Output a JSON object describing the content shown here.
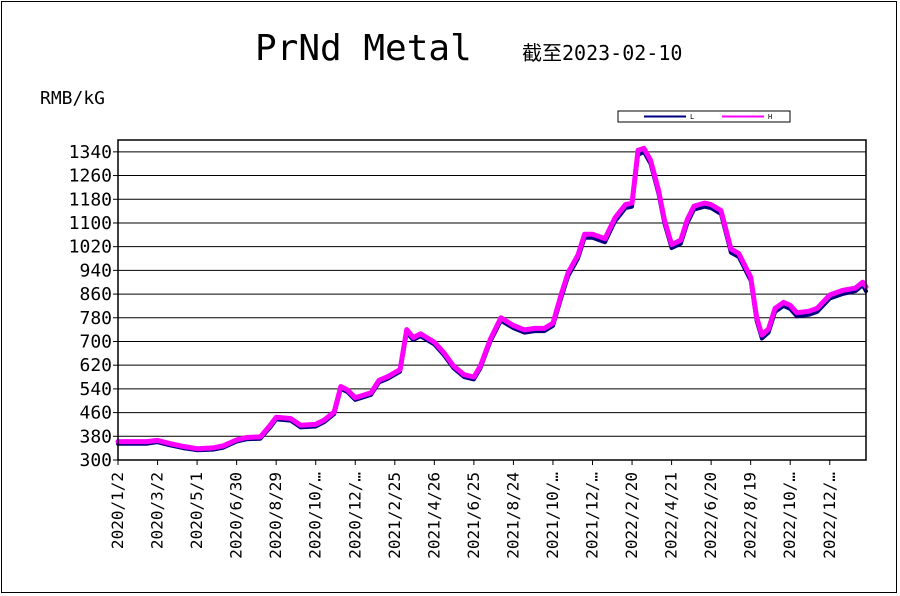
{
  "chart_data": {
    "type": "line",
    "title": "PrNd Metal",
    "subtitle": "截至2023-02-10",
    "ylabel": "RMB/kG",
    "ylim": [
      300,
      1380
    ],
    "yticks": [
      300,
      380,
      460,
      540,
      620,
      700,
      780,
      860,
      940,
      1020,
      1100,
      1180,
      1260,
      1340
    ],
    "grid": true,
    "legend_position": "top-right",
    "x_tick_labels": [
      "2020/1/2",
      "2020/3/2",
      "2020/5/1",
      "2020/6/30",
      "2020/8/29",
      "2020/10/…",
      "2020/12/…",
      "2021/2/25",
      "2021/4/26",
      "2021/6/25",
      "2021/8/24",
      "2021/10/…",
      "2021/12/…",
      "2022/2/20",
      "2022/4/21",
      "2022/6/20",
      "2022/8/19",
      "2022/10/…",
      "2022/12/…"
    ],
    "x_tick_dates": [
      "2020-01-02",
      "2020-03-02",
      "2020-05-01",
      "2020-06-30",
      "2020-08-29",
      "2020-10-28",
      "2020-12-27",
      "2021-02-25",
      "2021-04-26",
      "2021-06-25",
      "2021-08-24",
      "2021-10-23",
      "2021-12-22",
      "2022-02-20",
      "2022-04-21",
      "2022-06-20",
      "2022-08-19",
      "2022-10-18",
      "2022-12-17"
    ],
    "x_range": [
      "2020-01-02",
      "2023-02-10"
    ],
    "series": [
      {
        "name": "L",
        "color": "#000080",
        "points": [
          [
            "2020-01-02",
            355
          ],
          [
            "2020-02-15",
            355
          ],
          [
            "2020-03-02",
            360
          ],
          [
            "2020-03-20",
            350
          ],
          [
            "2020-04-10",
            340
          ],
          [
            "2020-05-01",
            333
          ],
          [
            "2020-05-25",
            335
          ],
          [
            "2020-06-10",
            342
          ],
          [
            "2020-06-30",
            362
          ],
          [
            "2020-07-15",
            370
          ],
          [
            "2020-08-05",
            372
          ],
          [
            "2020-08-20",
            410
          ],
          [
            "2020-08-29",
            437
          ],
          [
            "2020-09-20",
            433
          ],
          [
            "2020-10-05",
            410
          ],
          [
            "2020-10-28",
            413
          ],
          [
            "2020-11-10",
            428
          ],
          [
            "2020-11-25",
            455
          ],
          [
            "2020-12-05",
            540
          ],
          [
            "2020-12-15",
            530
          ],
          [
            "2020-12-27",
            503
          ],
          [
            "2021-01-20",
            520
          ],
          [
            "2021-02-01",
            562
          ],
          [
            "2021-02-15",
            575
          ],
          [
            "2021-03-05",
            598
          ],
          [
            "2021-03-15",
            730
          ],
          [
            "2021-03-25",
            705
          ],
          [
            "2021-04-05",
            718
          ],
          [
            "2021-04-26",
            690
          ],
          [
            "2021-05-10",
            655
          ],
          [
            "2021-05-25",
            610
          ],
          [
            "2021-06-10",
            580
          ],
          [
            "2021-06-25",
            572
          ],
          [
            "2021-07-05",
            610
          ],
          [
            "2021-07-20",
            700
          ],
          [
            "2021-08-05",
            770
          ],
          [
            "2021-08-24",
            745
          ],
          [
            "2021-09-10",
            730
          ],
          [
            "2021-09-25",
            735
          ],
          [
            "2021-10-10",
            735
          ],
          [
            "2021-10-23",
            753
          ],
          [
            "2021-11-05",
            850
          ],
          [
            "2021-11-15",
            920
          ],
          [
            "2021-11-30",
            980
          ],
          [
            "2021-12-10",
            1050
          ],
          [
            "2021-12-22",
            1050
          ],
          [
            "2022-01-10",
            1035
          ],
          [
            "2022-01-25",
            1105
          ],
          [
            "2022-02-10",
            1150
          ],
          [
            "2022-02-20",
            1155
          ],
          [
            "2022-03-01",
            1330
          ],
          [
            "2022-03-10",
            1340
          ],
          [
            "2022-03-20",
            1300
          ],
          [
            "2022-04-01",
            1200
          ],
          [
            "2022-04-10",
            1100
          ],
          [
            "2022-04-21",
            1015
          ],
          [
            "2022-05-05",
            1030
          ],
          [
            "2022-05-15",
            1100
          ],
          [
            "2022-05-25",
            1145
          ],
          [
            "2022-06-10",
            1155
          ],
          [
            "2022-06-20",
            1150
          ],
          [
            "2022-07-05",
            1130
          ],
          [
            "2022-07-20",
            1000
          ],
          [
            "2022-08-01",
            985
          ],
          [
            "2022-08-19",
            905
          ],
          [
            "2022-08-28",
            770
          ],
          [
            "2022-09-05",
            710
          ],
          [
            "2022-09-15",
            730
          ],
          [
            "2022-09-25",
            800
          ],
          [
            "2022-10-08",
            820
          ],
          [
            "2022-10-18",
            810
          ],
          [
            "2022-10-28",
            785
          ],
          [
            "2022-11-15",
            790
          ],
          [
            "2022-11-28",
            800
          ],
          [
            "2022-12-17",
            845
          ],
          [
            "2023-01-05",
            860
          ],
          [
            "2023-01-25",
            870
          ],
          [
            "2023-02-05",
            890
          ],
          [
            "2023-02-10",
            870
          ]
        ]
      },
      {
        "name": "H",
        "color": "#ff00ff",
        "points": [
          [
            "2020-01-02",
            362
          ],
          [
            "2020-02-15",
            362
          ],
          [
            "2020-03-02",
            366
          ],
          [
            "2020-03-20",
            356
          ],
          [
            "2020-04-10",
            346
          ],
          [
            "2020-05-01",
            338
          ],
          [
            "2020-05-25",
            341
          ],
          [
            "2020-06-10",
            348
          ],
          [
            "2020-06-30",
            368
          ],
          [
            "2020-07-15",
            376
          ],
          [
            "2020-08-05",
            378
          ],
          [
            "2020-08-20",
            417
          ],
          [
            "2020-08-29",
            444
          ],
          [
            "2020-09-20",
            440
          ],
          [
            "2020-10-05",
            417
          ],
          [
            "2020-10-28",
            420
          ],
          [
            "2020-11-10",
            435
          ],
          [
            "2020-11-25",
            462
          ],
          [
            "2020-12-05",
            548
          ],
          [
            "2020-12-15",
            537
          ],
          [
            "2020-12-27",
            510
          ],
          [
            "2021-01-20",
            527
          ],
          [
            "2021-02-01",
            569
          ],
          [
            "2021-02-15",
            582
          ],
          [
            "2021-03-05",
            605
          ],
          [
            "2021-03-15",
            740
          ],
          [
            "2021-03-25",
            713
          ],
          [
            "2021-04-05",
            726
          ],
          [
            "2021-04-26",
            698
          ],
          [
            "2021-05-10",
            663
          ],
          [
            "2021-05-25",
            618
          ],
          [
            "2021-06-10",
            588
          ],
          [
            "2021-06-25",
            580
          ],
          [
            "2021-07-05",
            618
          ],
          [
            "2021-07-20",
            708
          ],
          [
            "2021-08-05",
            780
          ],
          [
            "2021-08-24",
            754
          ],
          [
            "2021-09-10",
            739
          ],
          [
            "2021-09-25",
            744
          ],
          [
            "2021-10-10",
            744
          ],
          [
            "2021-10-23",
            762
          ],
          [
            "2021-11-05",
            862
          ],
          [
            "2021-11-15",
            932
          ],
          [
            "2021-11-30",
            992
          ],
          [
            "2021-12-10",
            1062
          ],
          [
            "2021-12-22",
            1062
          ],
          [
            "2022-01-10",
            1047
          ],
          [
            "2022-01-25",
            1117
          ],
          [
            "2022-02-10",
            1162
          ],
          [
            "2022-02-20",
            1167
          ],
          [
            "2022-03-01",
            1345
          ],
          [
            "2022-03-10",
            1352
          ],
          [
            "2022-03-20",
            1312
          ],
          [
            "2022-04-01",
            1212
          ],
          [
            "2022-04-10",
            1112
          ],
          [
            "2022-04-21",
            1027
          ],
          [
            "2022-05-05",
            1042
          ],
          [
            "2022-05-15",
            1112
          ],
          [
            "2022-05-25",
            1157
          ],
          [
            "2022-06-10",
            1167
          ],
          [
            "2022-06-20",
            1162
          ],
          [
            "2022-07-05",
            1142
          ],
          [
            "2022-07-20",
            1012
          ],
          [
            "2022-08-01",
            997
          ],
          [
            "2022-08-19",
            917
          ],
          [
            "2022-08-28",
            782
          ],
          [
            "2022-09-05",
            722
          ],
          [
            "2022-09-15",
            742
          ],
          [
            "2022-09-25",
            812
          ],
          [
            "2022-10-08",
            832
          ],
          [
            "2022-10-18",
            822
          ],
          [
            "2022-10-28",
            797
          ],
          [
            "2022-11-15",
            802
          ],
          [
            "2022-11-28",
            812
          ],
          [
            "2022-12-17",
            857
          ],
          [
            "2023-01-05",
            872
          ],
          [
            "2023-01-25",
            880
          ],
          [
            "2023-02-05",
            900
          ],
          [
            "2023-02-10",
            885
          ]
        ]
      }
    ]
  }
}
